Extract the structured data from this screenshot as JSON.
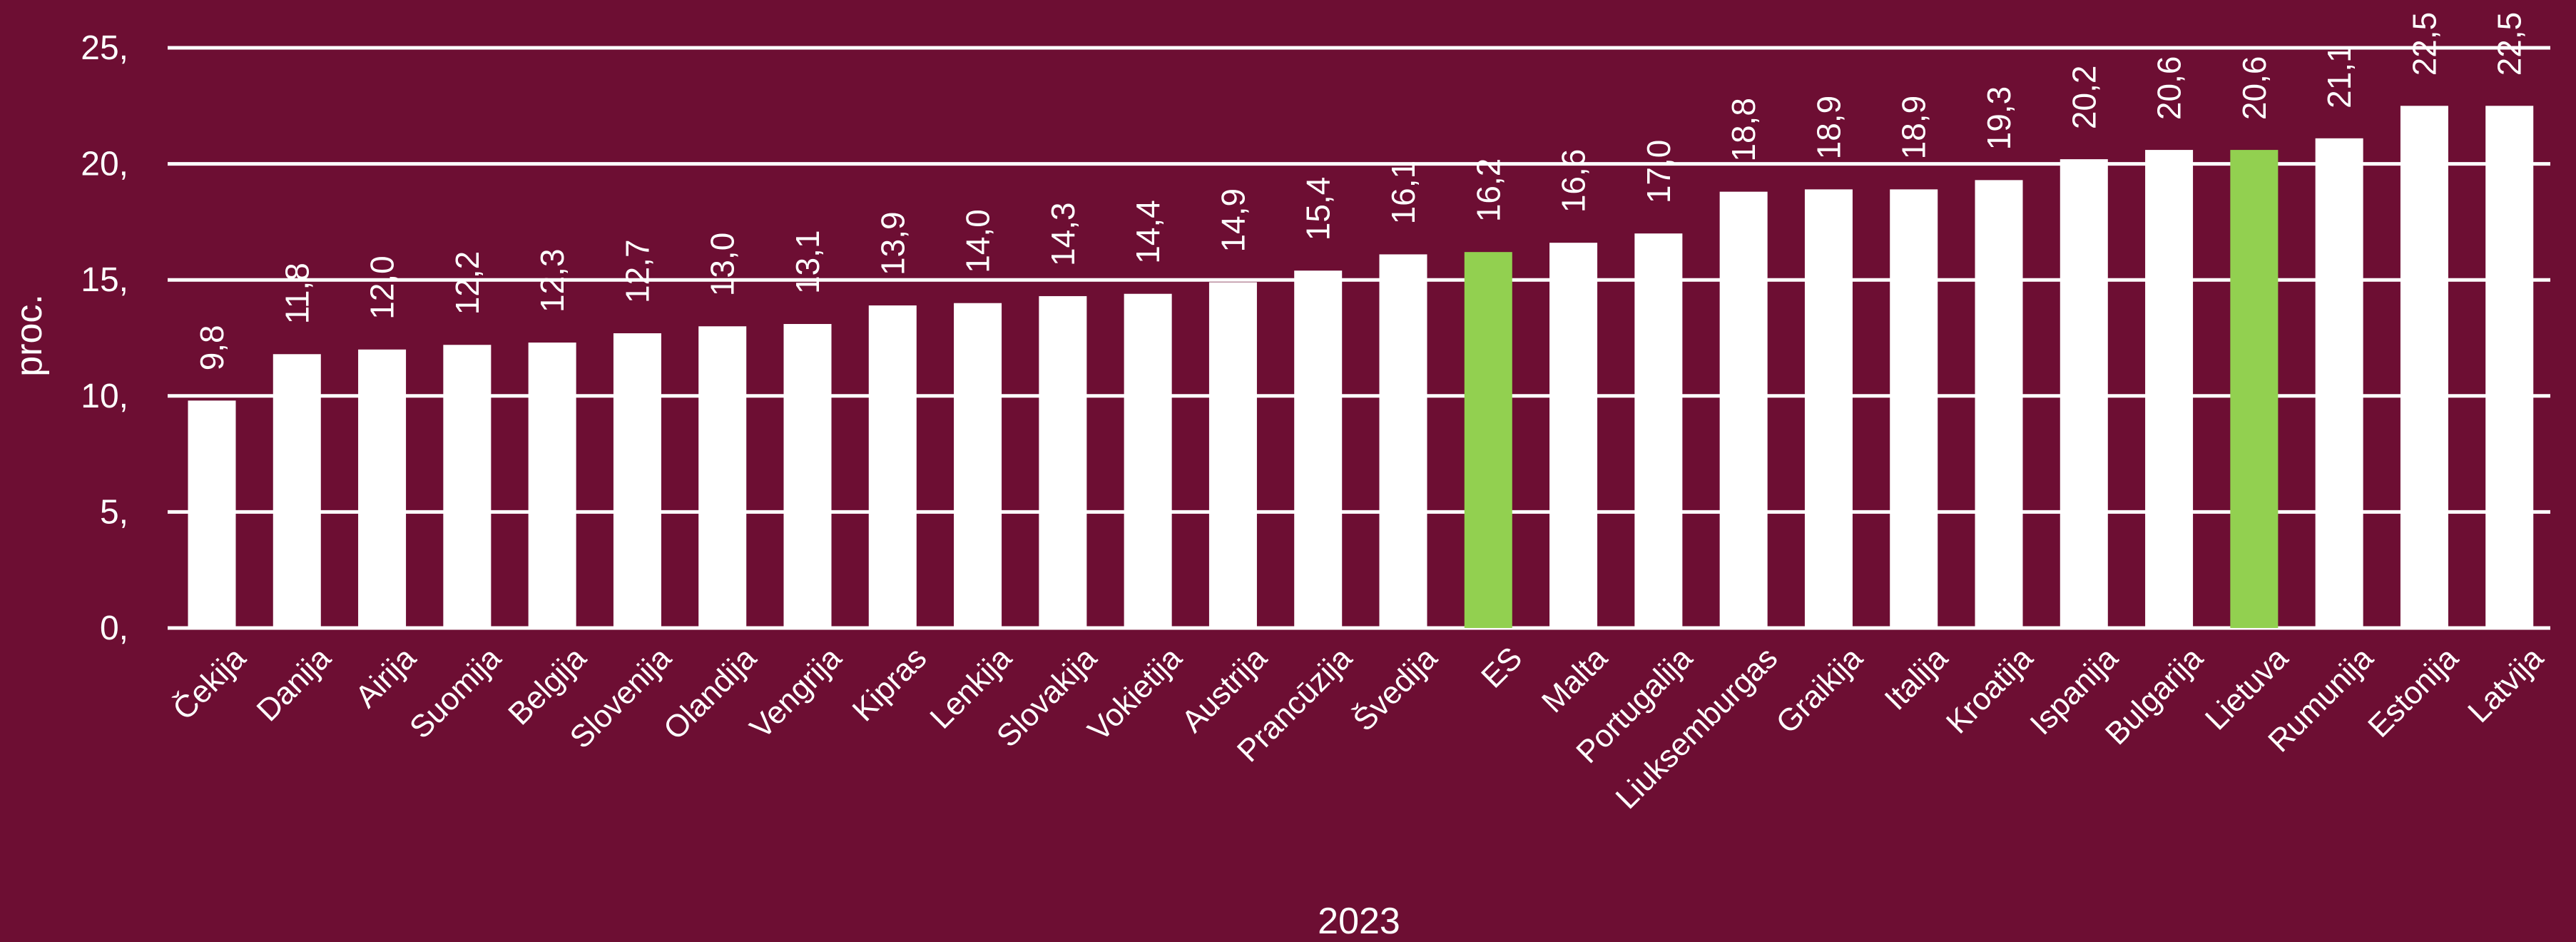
{
  "chart_data": {
    "type": "bar",
    "title": "",
    "xlabel": "2023",
    "ylabel": "proc.",
    "ylim": [
      0,
      25
    ],
    "yticks": [
      0,
      5,
      10,
      15,
      20,
      25
    ],
    "ytick_labels": [
      "0,",
      "5,",
      "10,",
      "15,",
      "20,",
      "25,"
    ],
    "grid": true,
    "categories": [
      "Čekija",
      "Danija",
      "Airija",
      "Suomija",
      "Belgija",
      "Slovenija",
      "Olandija",
      "Vengrija",
      "Kipras",
      "Lenkija",
      "Slovakija",
      "Vokietija",
      "Austrija",
      "Prancūzija",
      "Švedija",
      "ES",
      "Malta",
      "Portugalija",
      "Liuksemburgas",
      "Graikija",
      "Italija",
      "Kroatija",
      "Ispanija",
      "Bulgarija",
      "Lietuva",
      "Rumunija",
      "Estonija",
      "Latvija"
    ],
    "values": [
      9.8,
      11.8,
      12.0,
      12.2,
      12.3,
      12.7,
      13.0,
      13.1,
      13.9,
      14.0,
      14.3,
      14.4,
      14.9,
      15.4,
      16.1,
      16.2,
      16.6,
      17.0,
      18.8,
      18.9,
      18.9,
      19.3,
      20.2,
      20.6,
      20.6,
      21.1,
      22.5,
      22.5
    ],
    "value_labels": [
      "9,8",
      "11,8",
      "12,0",
      "12,2",
      "12,3",
      "12,7",
      "13,0",
      "13,1",
      "13,9",
      "14,0",
      "14,3",
      "14,4",
      "14,9",
      "15,4",
      "16,1",
      "16,2",
      "16,6",
      "17,0",
      "18,8",
      "18,9",
      "18,9",
      "19,3",
      "20,2",
      "20,6",
      "20,6",
      "21,1",
      "22,5",
      "22,5"
    ],
    "highlight": [
      "ES",
      "Lietuva"
    ],
    "colors": {
      "bar": "#ffffff",
      "highlight": "#92d050",
      "background": "#6d0e33",
      "grid": "#ffffff",
      "text": "#ffffff"
    }
  }
}
